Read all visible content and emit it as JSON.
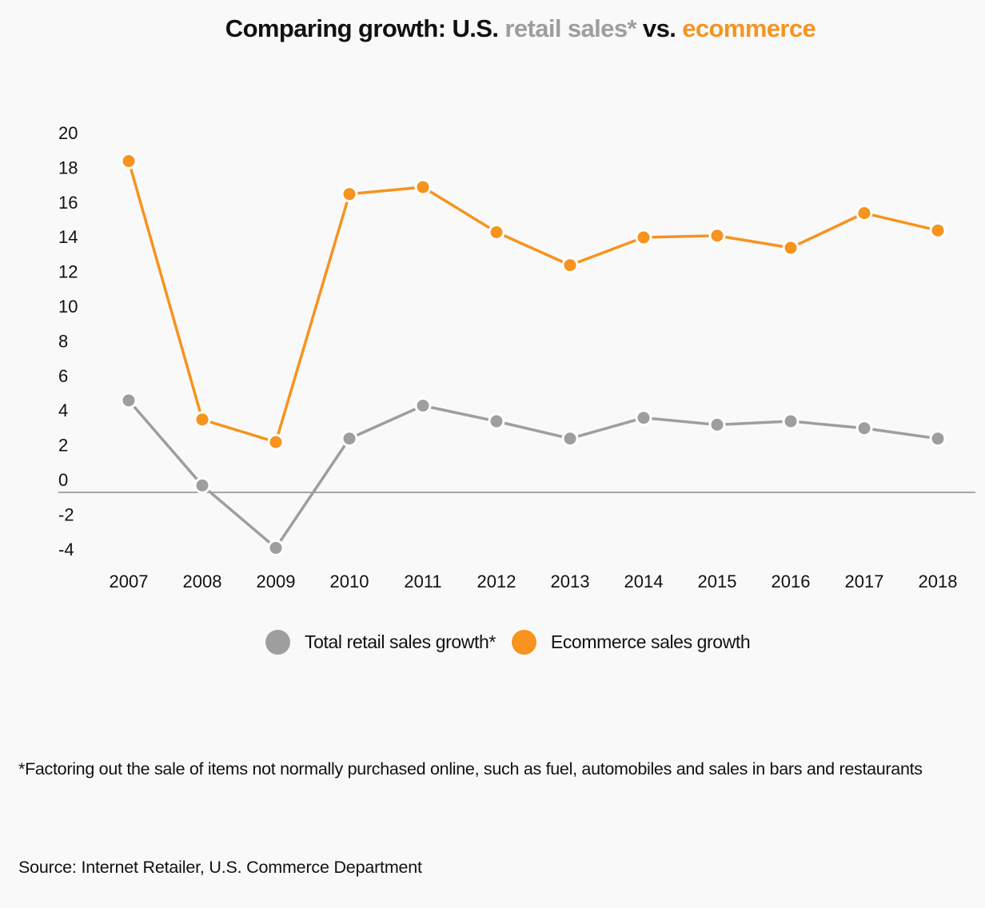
{
  "title": {
    "part1": "Comparing growth: U.S. ",
    "part2": "retail sales*",
    "part3": " vs. ",
    "part4": "ecommerce"
  },
  "colors": {
    "retail": "#9e9e9e",
    "ecommerce": "#f7931e",
    "zero_line": "#8a8a8a",
    "background": "#f9f9f9"
  },
  "legend": [
    {
      "label": "Total retail sales growth*",
      "color": "#9e9e9e"
    },
    {
      "label": "Ecommerce sales growth",
      "color": "#f7931e"
    }
  ],
  "footnote": "*Factoring out the sale of items not normally purchased online, such as fuel, automobiles and sales in bars and restaurants",
  "source": "Source: Internet Retailer, U.S. Commerce Department",
  "chart_data": {
    "type": "line",
    "title": "Comparing growth: U.S. retail sales* vs. ecommerce",
    "xlabel": "",
    "ylabel": "",
    "x": [
      "2007",
      "2008",
      "2009",
      "2010",
      "2011",
      "2012",
      "2013",
      "2014",
      "2015",
      "2016",
      "2017",
      "2018"
    ],
    "yticks": [
      20,
      18,
      16,
      14,
      12,
      10,
      8,
      6,
      4,
      2,
      0,
      -2,
      -4
    ],
    "ylim": [
      -4,
      20
    ],
    "grid": false,
    "zero_line": true,
    "legend_position": "bottom-center",
    "series": [
      {
        "name": "Total retail sales growth*",
        "color": "#9e9e9e",
        "values": [
          5.3,
          0.4,
          -3.2,
          3.1,
          5.0,
          4.1,
          3.1,
          4.3,
          3.9,
          4.1,
          3.7,
          3.1
        ]
      },
      {
        "name": "Ecommerce sales growth",
        "color": "#f7931e",
        "values": [
          19.1,
          4.2,
          2.9,
          17.2,
          17.6,
          15.0,
          13.1,
          14.7,
          14.8,
          14.1,
          16.1,
          15.1
        ]
      }
    ]
  }
}
